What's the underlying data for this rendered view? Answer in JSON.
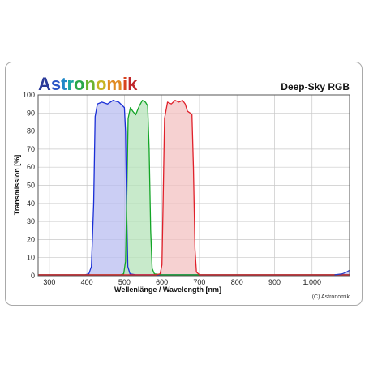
{
  "brand": {
    "name": "Astronomik",
    "letter_colors": [
      "#2b3a9a",
      "#2c56c6",
      "#1f88c8",
      "#1aa6a0",
      "#2aa84a",
      "#6cb32e",
      "#c7b323",
      "#e08a22",
      "#d9441e",
      "#c0262a"
    ]
  },
  "copyright": "(C) Astronomik",
  "chart_data": {
    "type": "area",
    "title": "Deep-Sky RGB",
    "xlabel": "Wellenlänge / Wavelength [nm]",
    "ylabel": "Transmission [%]",
    "xlim": [
      270,
      1100
    ],
    "ylim": [
      0,
      100
    ],
    "x_ticks": [
      300,
      400,
      500,
      600,
      700,
      800,
      900,
      1000
    ],
    "x_tick_labels": [
      "300",
      "400",
      "500",
      "600",
      "700",
      "800",
      "900",
      "1.000"
    ],
    "y_ticks": [
      0,
      10,
      20,
      30,
      40,
      50,
      60,
      70,
      80,
      90,
      100
    ],
    "y_tick_labels": [
      "0",
      "10",
      "20",
      "30",
      "40",
      "50",
      "60",
      "70",
      "80",
      "90",
      "100"
    ],
    "grid": true,
    "series": [
      {
        "color": "#1a2fd6",
        "fill": "#b9bdf0",
        "points": [
          [
            270,
            0.5
          ],
          [
            395,
            0.5
          ],
          [
            405,
            1
          ],
          [
            412,
            5
          ],
          [
            418,
            40
          ],
          [
            422,
            88
          ],
          [
            428,
            95
          ],
          [
            440,
            96
          ],
          [
            455,
            95
          ],
          [
            470,
            97
          ],
          [
            485,
            96
          ],
          [
            495,
            94
          ],
          [
            500,
            93
          ],
          [
            503,
            80
          ],
          [
            506,
            35
          ],
          [
            509,
            5
          ],
          [
            515,
            1
          ],
          [
            530,
            0.5
          ],
          [
            680,
            0.5
          ],
          [
            1100,
            0.5
          ]
        ]
      },
      {
        "color": "#12a526",
        "fill": "#b6e3b9",
        "points": [
          [
            270,
            0.5
          ],
          [
            490,
            0.5
          ],
          [
            498,
            1
          ],
          [
            503,
            8
          ],
          [
            506,
            40
          ],
          [
            510,
            87
          ],
          [
            516,
            93
          ],
          [
            522,
            91
          ],
          [
            530,
            89
          ],
          [
            540,
            94
          ],
          [
            548,
            97
          ],
          [
            556,
            96
          ],
          [
            562,
            94
          ],
          [
            566,
            70
          ],
          [
            570,
            25
          ],
          [
            574,
            4
          ],
          [
            580,
            1
          ],
          [
            600,
            0.5
          ],
          [
            1100,
            0.5
          ]
        ]
      },
      {
        "color": "#e0202a",
        "fill": "#f3c1c1",
        "points": [
          [
            270,
            0.5
          ],
          [
            585,
            0.5
          ],
          [
            595,
            1
          ],
          [
            600,
            6
          ],
          [
            603,
            40
          ],
          [
            607,
            87
          ],
          [
            615,
            96
          ],
          [
            625,
            95
          ],
          [
            635,
            97
          ],
          [
            645,
            96
          ],
          [
            655,
            97
          ],
          [
            662,
            95
          ],
          [
            668,
            91
          ],
          [
            675,
            90
          ],
          [
            680,
            89
          ],
          [
            684,
            60
          ],
          [
            688,
            15
          ],
          [
            692,
            2
          ],
          [
            700,
            0.5
          ],
          [
            1100,
            0.5
          ]
        ]
      },
      {
        "color": "#2a3dc4",
        "fill": "#b9bdf0",
        "points": [
          [
            1060,
            0.5
          ],
          [
            1080,
            1
          ],
          [
            1090,
            1.8
          ],
          [
            1100,
            3
          ]
        ]
      }
    ]
  }
}
